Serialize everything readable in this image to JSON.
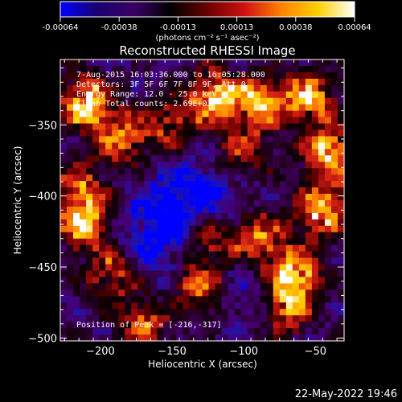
{
  "chart_data": {
    "type": "heatmap",
    "title": "Reconstructed RHESSI Image",
    "colorbar": {
      "ticks": [
        "-0.00064",
        "-0.00038",
        "-0.00013",
        "0.00013",
        "0.00038",
        "0.00064"
      ],
      "range": [
        -0.00064,
        0.00064
      ],
      "unit": "(photons cm⁻² s⁻¹ asec⁻²)",
      "colors": [
        "#0000ff",
        "#1a0070",
        "#3a0066",
        "#000000",
        "#6a0000",
        "#d01010",
        "#ff8000",
        "#ffd000",
        "#ffffff"
      ]
    },
    "xlabel": "Heliocentric X (arcsec)",
    "ylabel": "Heliocentric Y (arcsec)",
    "xlim": [
      -228,
      -30
    ],
    "ylim": [
      -502,
      -304
    ],
    "xticks": [
      -200,
      -150,
      -100,
      -50
    ],
    "yticks": [
      -350,
      -400,
      -450,
      -500
    ],
    "annotations": [
      "7-Aug-2015 16:03:36.000 to 16:05:28.000",
      "Detectors: 3F 5F 6F 7F 8F 9F, Att 0",
      "Energy Range: 12.0 - 25.0 keV",
      "Clean     Total counts: 2.69E+03"
    ],
    "peak_label": "Position of Peak = [-216,-317]",
    "peak": [
      -216,
      -317
    ],
    "grid_size": [
      44,
      44
    ],
    "seed": 20150807,
    "hotspots": [
      [
        -120,
        -330,
        0.9
      ],
      [
        -90,
        -335,
        0.8
      ],
      [
        -55,
        -330,
        0.85
      ],
      [
        -40,
        -370,
        0.9
      ],
      [
        -45,
        -410,
        0.85
      ],
      [
        -210,
        -335,
        1.0
      ],
      [
        -185,
        -360,
        0.7
      ],
      [
        -215,
        -395,
        0.6
      ],
      [
        -210,
        -420,
        0.9
      ],
      [
        -190,
        -455,
        0.7
      ],
      [
        -130,
        -465,
        0.75
      ],
      [
        -125,
        -430,
        0.6
      ],
      [
        -90,
        -430,
        0.7
      ],
      [
        -65,
        -455,
        0.95
      ],
      [
        -70,
        -480,
        0.7
      ],
      [
        -150,
        -350,
        0.55
      ],
      [
        -170,
        -490,
        0.6
      ],
      [
        -100,
        -370,
        0.5
      ]
    ],
    "coldspots": [
      [
        -150,
        -415,
        0.8
      ],
      [
        -130,
        -400,
        0.7
      ],
      [
        -170,
        -440,
        0.6
      ],
      [
        -100,
        -470,
        0.5
      ]
    ]
  },
  "footer": {
    "timestamp": "22-May-2022 19:46"
  }
}
